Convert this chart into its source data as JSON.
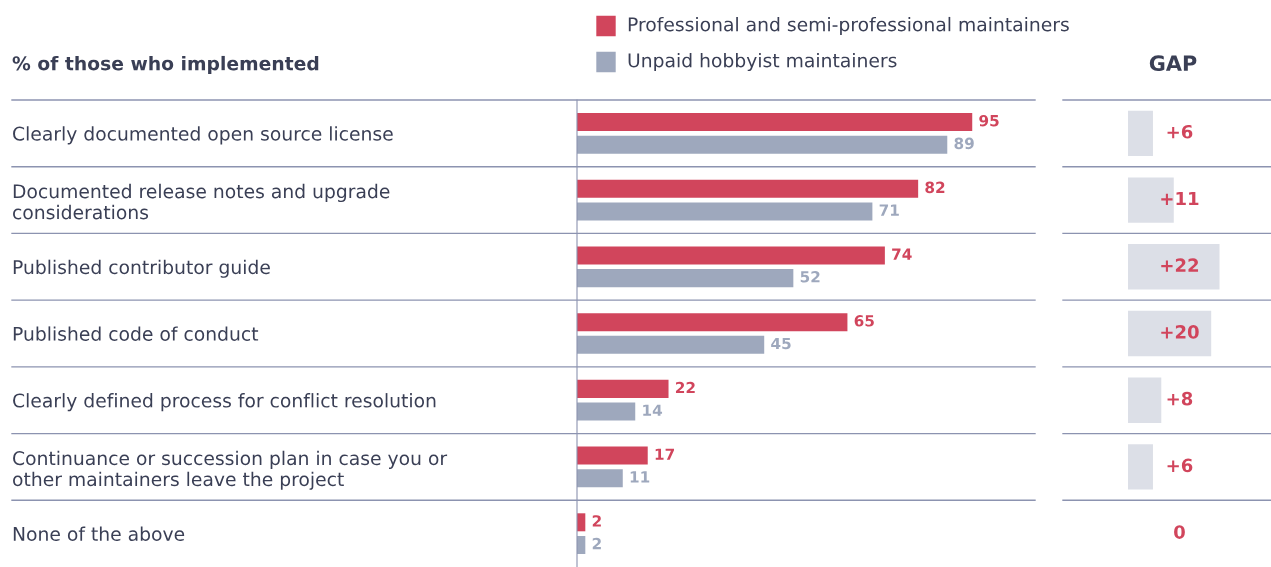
{
  "chart_data": [
    {
      "type": "bar",
      "orientation": "horizontal",
      "title": "% of those who implemented",
      "categories": [
        "Clearly documented open source license",
        "Documented release notes and upgrade\nconsiderations",
        "Published contributor guide",
        "Published code of conduct",
        "Clearly defined process for conflict resolution",
        "Continuance or succession plan in case you or\nother maintainers leave the project",
        "None of the above"
      ],
      "series": [
        {
          "name": "Professional and semi-professional maintainers",
          "color": "#d1455c",
          "values": [
            95,
            82,
            74,
            65,
            22,
            17,
            2
          ]
        },
        {
          "name": "Unpaid hobbyist maintainers",
          "color": "#9ea8bd",
          "values": [
            89,
            71,
            52,
            45,
            14,
            11,
            2
          ]
        }
      ],
      "data_labels": true,
      "legend": "top",
      "tick_labels": "y"
    },
    {
      "type": "bar",
      "orientation": "horizontal",
      "title": "GAP",
      "categories": [
        null,
        null,
        null,
        null,
        null,
        null,
        null
      ],
      "values": [
        6,
        11,
        22,
        20,
        8,
        6,
        0
      ],
      "color": "#dcdfe7",
      "value_labels": [
        "+6",
        "+11",
        "+22",
        "+20",
        "+8",
        "+6",
        "0"
      ],
      "tick_labels": false
    }
  ]
}
